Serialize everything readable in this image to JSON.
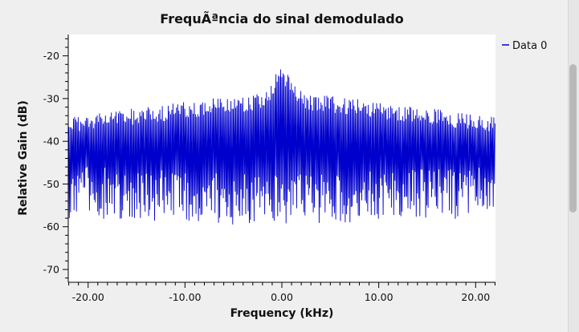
{
  "chart_data": {
    "type": "line",
    "title": "FrequÃªncia do sinal demodulado",
    "xlabel": "Frequency (kHz)",
    "ylabel": "Relative Gain (dB)",
    "xlim": [
      -22.05,
      22.05
    ],
    "ylim": [
      -73,
      -15
    ],
    "x_ticks": [
      -20,
      -10,
      0,
      10,
      20
    ],
    "x_tick_labels": [
      "-20.00",
      "-10.00",
      "0.00",
      "10.00",
      "20.00"
    ],
    "y_ticks": [
      -20,
      -30,
      -40,
      -50,
      -60,
      -70
    ],
    "y_tick_labels": [
      "-20",
      "-30",
      "-40",
      "-50",
      "-60",
      "-70"
    ],
    "grid": false,
    "legend_position": "right",
    "series": [
      {
        "name": "Data 0",
        "color": "#0000cc",
        "description": "dense noisy spectrum oscillating roughly between -62 and -25 dB, with peaks near -25 dB around 0 kHz",
        "sample_points": [
          [
            -22.0,
            -38
          ],
          [
            -21.8,
            -55
          ],
          [
            -21.5,
            -36
          ],
          [
            -21.0,
            -54
          ],
          [
            -20.5,
            -35
          ],
          [
            -20.0,
            -53
          ],
          [
            -19.0,
            -34
          ],
          [
            -18.5,
            -58
          ],
          [
            -17.0,
            -34
          ],
          [
            -16.0,
            -60
          ],
          [
            -15.5,
            -31
          ],
          [
            -15.0,
            -56
          ],
          [
            -13.0,
            -33
          ],
          [
            -12.0,
            -57
          ],
          [
            -10.0,
            -30
          ],
          [
            -8.0,
            -58
          ],
          [
            -5.0,
            -28
          ],
          [
            -4.0,
            -60
          ],
          [
            -2.0,
            -30
          ],
          [
            -1.5,
            -62
          ],
          [
            -0.5,
            -25
          ],
          [
            0.0,
            -26
          ],
          [
            0.5,
            -25
          ],
          [
            1.5,
            -60
          ],
          [
            3.0,
            -30
          ],
          [
            4.0,
            -58
          ],
          [
            5.0,
            -28
          ],
          [
            8.0,
            -57
          ],
          [
            10.0,
            -30
          ],
          [
            12.0,
            -57
          ],
          [
            14.0,
            -31
          ],
          [
            16.0,
            -60
          ],
          [
            18.0,
            -33
          ],
          [
            20.0,
            -53
          ],
          [
            21.5,
            -35
          ],
          [
            22.0,
            -50
          ]
        ]
      }
    ]
  }
}
